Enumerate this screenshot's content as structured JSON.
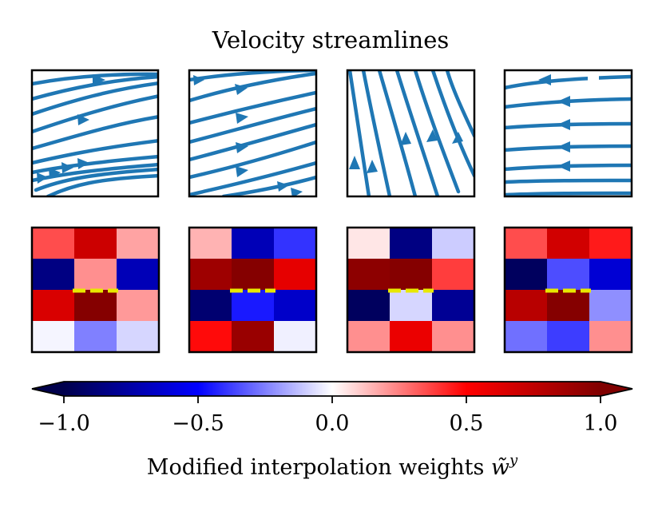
{
  "chart_data": {
    "type": "heatmap",
    "title": "Velocity streamlines",
    "streamline_panels": [
      {
        "panel": 1,
        "flow": "left-to-right, converging to lower-left"
      },
      {
        "panel": 2,
        "flow": "left-to-right, rising to the right"
      },
      {
        "panel": 3,
        "flow": "bottom-to-top, steep upward"
      },
      {
        "panel": 4,
        "flow": "right-to-left, slight curvature"
      }
    ],
    "heatmaps": [
      {
        "panel": 1,
        "rows": 4,
        "cols": 3,
        "values": [
          [
            0.35,
            0.7,
            0.18
          ],
          [
            -0.85,
            0.22,
            -0.7
          ],
          [
            0.65,
            0.98,
            0.2
          ],
          [
            -0.02,
            -0.25,
            -0.08
          ]
        ]
      },
      {
        "panel": 2,
        "rows": 4,
        "cols": 3,
        "values": [
          [
            0.15,
            -0.7,
            -0.4
          ],
          [
            0.88,
            0.98,
            0.6
          ],
          [
            -0.9,
            -0.45,
            -0.65
          ],
          [
            0.48,
            0.9,
            -0.03
          ]
        ]
      },
      {
        "panel": 3,
        "rows": 4,
        "cols": 3,
        "values": [
          [
            0.05,
            -0.85,
            -0.1
          ],
          [
            0.95,
            0.98,
            0.38
          ],
          [
            -0.95,
            -0.08,
            -0.8
          ],
          [
            0.22,
            0.58,
            0.22
          ]
        ]
      },
      {
        "panel": 4,
        "rows": 4,
        "cols": 3,
        "values": [
          [
            0.35,
            0.68,
            0.45
          ],
          [
            -0.95,
            -0.35,
            -0.62
          ],
          [
            0.78,
            0.98,
            -0.22
          ],
          [
            -0.28,
            -0.38,
            0.22
          ]
        ]
      }
    ],
    "marker_color": "#e8e800",
    "colorbar": {
      "label": "Modified interpolation weights ̃wʸ",
      "label_main": "Modified interpolation weights ",
      "label_sym": "w̃",
      "label_sup": "y",
      "ticks": [
        "−1.0",
        "−0.5",
        "0.0",
        "0.5",
        "1.0"
      ],
      "tick_values": [
        -1.0,
        -0.5,
        0.0,
        0.5,
        1.0
      ],
      "range": [
        -1.0,
        1.0
      ],
      "extend": "both",
      "colormap": "seismic"
    },
    "stream_color": "#1f77b4"
  }
}
